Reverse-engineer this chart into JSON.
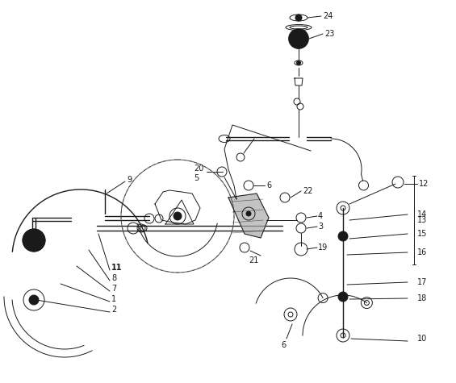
{
  "bg_color": "#ffffff",
  "line_color": "#1a1a1a",
  "fig_width": 5.65,
  "fig_height": 4.75,
  "dpi": 100
}
